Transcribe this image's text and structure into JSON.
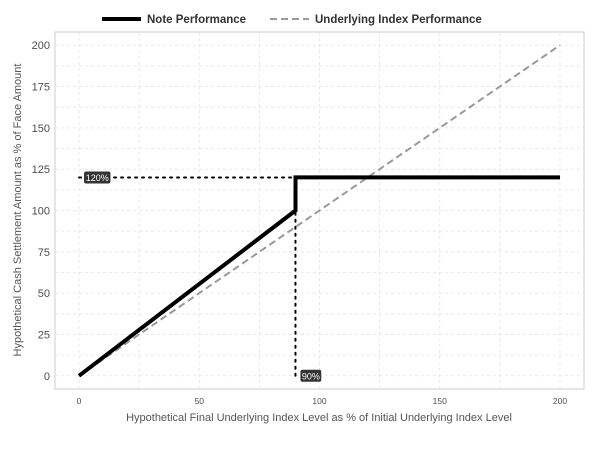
{
  "chart_data": {
    "type": "line",
    "xlabel": "Hypothetical Final Underlying Index Level as % of Initial Underlying Index Level",
    "ylabel": "Hypothetical Cash Settlement Amount as % of Face Amount",
    "xlim": [
      -10,
      210
    ],
    "ylim": [
      -8,
      208
    ],
    "x_ticks": [
      0,
      50,
      100,
      150,
      200
    ],
    "y_ticks": [
      0,
      25,
      50,
      75,
      100,
      125,
      150,
      175,
      200
    ],
    "grid": true,
    "legend_position": "top",
    "series": [
      {
        "name": "Note Performance",
        "style": "solid",
        "color": "#000000",
        "x": [
          0,
          90,
          90,
          200
        ],
        "y": [
          0,
          100,
          120,
          120
        ]
      },
      {
        "name": "Underlying Index Performance",
        "style": "dashed",
        "color": "#999999",
        "x": [
          0,
          200
        ],
        "y": [
          0,
          200
        ]
      }
    ],
    "annotations": [
      {
        "label": "120%",
        "x": 0,
        "y": 120,
        "guide": "horizontal",
        "guide_to_x": 90
      },
      {
        "label": "90%",
        "x": 90,
        "y": 0,
        "guide": "vertical",
        "guide_to_y": 120
      }
    ]
  }
}
